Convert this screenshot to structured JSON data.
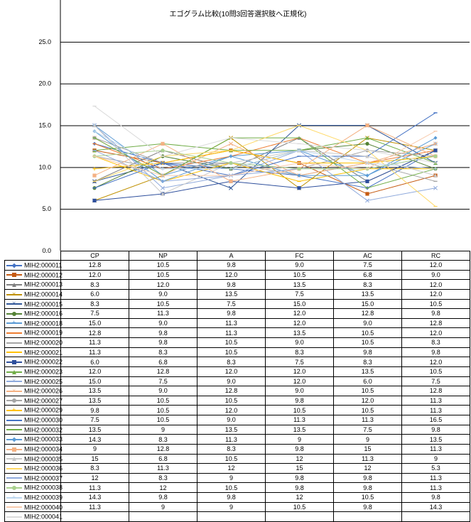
{
  "chart_data": {
    "type": "line",
    "title": "エゴグラム比較(10問3回答選択肢へ正規化)",
    "categories": [
      "CP",
      "NP",
      "A",
      "FC",
      "AC",
      "RC"
    ],
    "y_ticks": [
      "25.0",
      "20.0",
      "15.0",
      "10.0",
      "5.0",
      "0.0"
    ],
    "ylim": [
      0,
      30
    ],
    "grid": true,
    "legend": "data-table",
    "series": [
      {
        "name": "MIH2:000011",
        "color": "#4472C4",
        "marker": "diamond",
        "values": [
          12.8,
          10.5,
          9.8,
          9.0,
          7.5,
          12.0
        ],
        "labels": [
          "12.8",
          "10.5",
          "9.8",
          "9.0",
          "7.5",
          "12.0"
        ]
      },
      {
        "name": "MIH2:000012",
        "color": "#C55A11",
        "marker": "square",
        "values": [
          12.0,
          10.5,
          12.0,
          10.5,
          6.8,
          9.0
        ],
        "labels": [
          "12.0",
          "10.5",
          "12.0",
          "10.5",
          "6.8",
          "9.0"
        ]
      },
      {
        "name": "MIH2:000013",
        "color": "#7F7F7F",
        "marker": "triangle",
        "values": [
          8.3,
          12.0,
          9.8,
          13.5,
          8.3,
          12.0
        ],
        "labels": [
          "8.3",
          "12.0",
          "9.8",
          "13.5",
          "8.3",
          "12.0"
        ]
      },
      {
        "name": "MIH2:000014",
        "color": "#BF9000",
        "marker": "x",
        "values": [
          6.0,
          9.0,
          13.5,
          7.5,
          13.5,
          12.0
        ],
        "labels": [
          "6.0",
          "9.0",
          "13.5",
          "7.5",
          "13.5",
          "12.0"
        ]
      },
      {
        "name": "MIH2:000015",
        "color": "#2F5597",
        "marker": "x",
        "values": [
          8.3,
          10.5,
          7.5,
          15.0,
          15.0,
          10.5
        ],
        "labels": [
          "8.3",
          "10.5",
          "7.5",
          "15.0",
          "15.0",
          "10.5"
        ]
      },
      {
        "name": "MIH2:000016",
        "color": "#548235",
        "marker": "circle",
        "values": [
          7.5,
          11.3,
          9.8,
          12.0,
          12.8,
          9.8
        ],
        "labels": [
          "7.5",
          "11.3",
          "9.8",
          "12.0",
          "12.8",
          "9.8"
        ]
      },
      {
        "name": "MIH2:000018",
        "color": "#5B9BD5",
        "marker": "plus",
        "values": [
          15.0,
          9.0,
          11.3,
          12.0,
          9.0,
          12.8
        ],
        "labels": [
          "15.0",
          "9.0",
          "11.3",
          "12.0",
          "9.0",
          "12.8"
        ]
      },
      {
        "name": "MIH2:000019",
        "color": "#ED7D31",
        "marker": "dash",
        "values": [
          12.8,
          9.8,
          11.3,
          13.5,
          10.5,
          12.0
        ],
        "labels": [
          "12.8",
          "9.8",
          "11.3",
          "13.5",
          "10.5",
          "12.0"
        ]
      },
      {
        "name": "MIH2:000020",
        "color": "#A5A5A5",
        "marker": "dash",
        "values": [
          11.3,
          9.8,
          10.5,
          9.0,
          10.5,
          8.3
        ],
        "labels": [
          "11.3",
          "9.8",
          "10.5",
          "9.0",
          "10.5",
          "8.3"
        ]
      },
      {
        "name": "MIH2:000021",
        "color": "#FFC000",
        "marker": "dash",
        "values": [
          11.3,
          8.3,
          10.5,
          8.3,
          9.8,
          9.8
        ],
        "labels": [
          "11.3",
          "8.3",
          "10.5",
          "8.3",
          "9.8",
          "9.8"
        ]
      },
      {
        "name": "MIH2:000022",
        "color": "#2E4F9C",
        "marker": "square",
        "values": [
          6.0,
          6.8,
          8.3,
          7.5,
          8.3,
          12.0
        ],
        "labels": [
          "6.0",
          "6.8",
          "8.3",
          "7.5",
          "8.3",
          "12.0"
        ]
      },
      {
        "name": "MIH2:000023",
        "color": "#70AD47",
        "marker": "triangle",
        "values": [
          12.0,
          12.8,
          12.0,
          12.0,
          13.5,
          10.5
        ],
        "labels": [
          "12.0",
          "12.8",
          "12.0",
          "12.0",
          "13.5",
          "10.5"
        ]
      },
      {
        "name": "MIH2:000025",
        "color": "#8FAADC",
        "marker": "x",
        "values": [
          15.0,
          7.5,
          9.0,
          12.0,
          6.0,
          7.5
        ],
        "labels": [
          "15.0",
          "7.5",
          "9.0",
          "12.0",
          "6.0",
          "7.5"
        ]
      },
      {
        "name": "MIH2:000026",
        "color": "#F4B183",
        "marker": "x",
        "values": [
          13.5,
          9.0,
          12.8,
          9.0,
          10.5,
          12.8
        ],
        "labels": [
          "13.5",
          "9.0",
          "12.8",
          "9.0",
          "10.5",
          "12.8"
        ]
      },
      {
        "name": "MIH2:000027",
        "color": "#A5A5A5",
        "marker": "circle",
        "values": [
          13.5,
          10.5,
          10.5,
          9.8,
          12.0,
          11.3
        ],
        "labels": [
          "13.5",
          "10.5",
          "10.5",
          "9.8",
          "12.0",
          "11.3"
        ]
      },
      {
        "name": "MIH2:000029",
        "color": "#FFC000",
        "marker": "plus",
        "values": [
          9.8,
          10.5,
          12.0,
          10.5,
          10.5,
          11.3
        ],
        "labels": [
          "9.8",
          "10.5",
          "12.0",
          "10.5",
          "10.5",
          "11.3"
        ]
      },
      {
        "name": "MIH2:000030",
        "color": "#4472C4",
        "marker": "dash",
        "values": [
          7.5,
          10.5,
          9.0,
          11.3,
          11.3,
          16.5
        ],
        "labels": [
          "7.5",
          "10.5",
          "9.0",
          "11.3",
          "11.3",
          "16.5"
        ]
      },
      {
        "name": "MIH2:000032",
        "color": "#70AD47",
        "marker": "dash",
        "values": [
          13.5,
          9.0,
          13.5,
          13.5,
          7.5,
          9.8
        ],
        "labels": [
          "13.5",
          "9",
          "13.5",
          "13.5",
          "7.5",
          "9.8"
        ]
      },
      {
        "name": "MIH2:000033",
        "color": "#5B9BD5",
        "marker": "diamond",
        "values": [
          14.3,
          8.3,
          11.3,
          9.0,
          9.0,
          13.5
        ],
        "labels": [
          "14.3",
          "8.3",
          "11.3",
          "9",
          "9",
          "13.5"
        ]
      },
      {
        "name": "MIH2:000034",
        "color": "#F4B183",
        "marker": "square",
        "values": [
          9.0,
          12.8,
          8.3,
          9.8,
          15.0,
          11.3
        ],
        "labels": [
          "9",
          "12.8",
          "8.3",
          "9.8",
          "15",
          "11.3"
        ]
      },
      {
        "name": "MIH2:000035",
        "color": "#C9C9C9",
        "marker": "triangle",
        "values": [
          15.0,
          6.8,
          10.5,
          12.0,
          11.3,
          9.0
        ],
        "labels": [
          "15",
          "6.8",
          "10.5",
          "12",
          "11.3",
          "9"
        ]
      },
      {
        "name": "MIH2:000036",
        "color": "#FFD966",
        "marker": "dash",
        "values": [
          8.3,
          11.3,
          12.0,
          15.0,
          12.0,
          5.3
        ],
        "labels": [
          "8.3",
          "11.3",
          "12",
          "15",
          "12",
          "5.3"
        ]
      },
      {
        "name": "MIH2:000037",
        "color": "#8FAADC",
        "marker": "dash",
        "values": [
          12.0,
          8.3,
          9.0,
          9.8,
          9.8,
          11.3
        ],
        "labels": [
          "12",
          "8.3",
          "9",
          "9.8",
          "9.8",
          "11.3"
        ]
      },
      {
        "name": "MIH2:000038",
        "color": "#A9D18E",
        "marker": "circle",
        "values": [
          11.3,
          12.0,
          10.5,
          9.8,
          9.8,
          11.3
        ],
        "labels": [
          "11.3",
          "12",
          "10.5",
          "9.8",
          "9.8",
          "11.3"
        ]
      },
      {
        "name": "MIH2:000039",
        "color": "#BDD7EE",
        "marker": "plus",
        "values": [
          14.3,
          9.8,
          9.8,
          12.0,
          10.5,
          9.8
        ],
        "labels": [
          "14.3",
          "9.8",
          "9.8",
          "12",
          "10.5",
          "9.8"
        ]
      },
      {
        "name": "MIH2:000040",
        "color": "#F8CBAD",
        "marker": "dash",
        "values": [
          11.3,
          9.0,
          9.0,
          10.5,
          9.8,
          14.3
        ],
        "labels": [
          "11.3",
          "9",
          "9",
          "10.5",
          "9.8",
          "14.3"
        ]
      },
      {
        "name": "MIH2:000041",
        "color": "#DBDBDB",
        "marker": "dash",
        "values": [
          17.3,
          11.3,
          13.5,
          12.8,
          12.0,
          10.5
        ],
        "labels": [],
        "partial": true
      }
    ]
  }
}
